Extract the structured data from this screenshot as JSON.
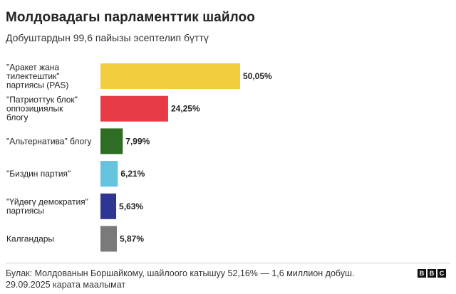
{
  "header": {
    "title": "Молдовадагы парламенттик шайлоо",
    "subtitle": "Добуштардын 99,6 пайызы эсептелип бүттү"
  },
  "footer": {
    "source_line1": "Булак: Молдованын Боршайкому, шайлоого катышуу 52,16% — 1,6 миллион добуш.",
    "source_line2": "29.09.2025 карата маалымат",
    "logo_letters": [
      "B",
      "B",
      "C"
    ]
  },
  "chart_data": {
    "type": "bar",
    "orientation": "horizontal",
    "categories": [
      [
        "\"Аракет жана",
        "тилектештик\"",
        "партиясы (PAS)"
      ],
      [
        "\"Патриоттук блок\"",
        "оппозициялык",
        "блогу"
      ],
      [
        "\"Альтернатива\" блогу"
      ],
      [
        "\"Биздин партия\""
      ],
      [
        "\"Үйдөгү демократия\"",
        "партиясы"
      ],
      [
        "Калгандары"
      ]
    ],
    "values": [
      50.05,
      24.25,
      7.99,
      6.21,
      5.63,
      5.87
    ],
    "value_labels": [
      "50,05%",
      "24,25%",
      "7,99%",
      "6,21%",
      "5,63%",
      "5,87%"
    ],
    "colors": [
      "#f2ce3e",
      "#e83a45",
      "#2e6d23",
      "#65c3e0",
      "#2f3593",
      "#7a7a7a"
    ],
    "xlim": [
      0,
      50.05
    ],
    "grid": false,
    "legend": "none"
  }
}
